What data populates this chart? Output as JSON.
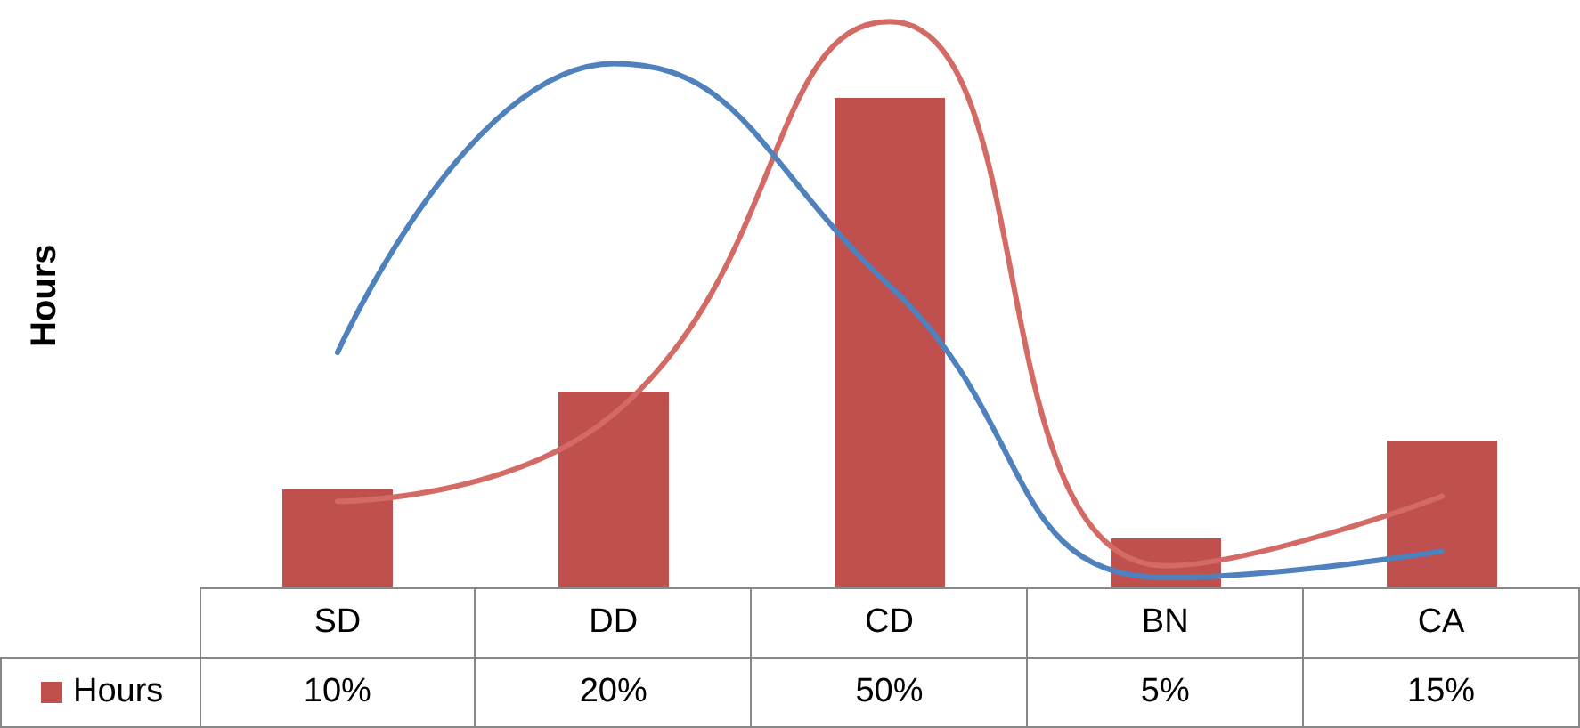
{
  "chart_data": {
    "type": "bar",
    "ylabel": "Hours",
    "categories": [
      "SD",
      "DD",
      "CD",
      "BN",
      "CA"
    ],
    "legend": "bottom",
    "grid": false,
    "series": [
      {
        "name": "Hours",
        "color": "#c0504d",
        "values": [
          10,
          20,
          50,
          5,
          15
        ],
        "value_labels": [
          "10%",
          "20%",
          "50%",
          "5%",
          "15%"
        ]
      },
      {
        "type": "line",
        "color": "#d46a66",
        "values": [
          8.8,
          17.7,
          57.8,
          2.2,
          9.3
        ],
        "marker": "none"
      },
      {
        "type": "line",
        "color": "#4f81bd",
        "values": [
          24,
          53.5,
          30.8,
          1,
          3.7
        ],
        "marker": "none"
      }
    ]
  }
}
